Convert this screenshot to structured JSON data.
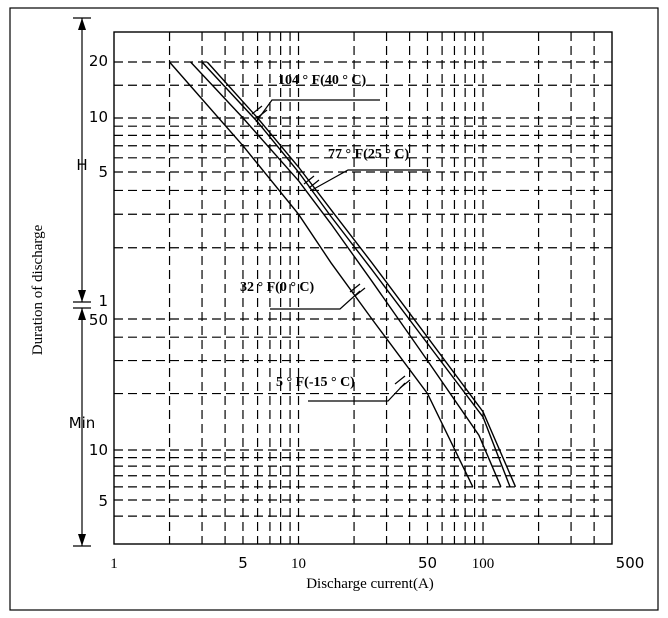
{
  "chart_data": {
    "type": "line",
    "x_scale": "log",
    "y_scale": "log",
    "xlabel": "Discharge current(A)",
    "ylabel": "Duration of discharge",
    "xlim": [
      1,
      500
    ],
    "x_ticks": [
      {
        "value": 1,
        "label": "1"
      },
      {
        "value": 5,
        "label": "5"
      },
      {
        "value": 10,
        "label": "10"
      },
      {
        "value": 50,
        "label": "50"
      },
      {
        "value": 100,
        "label": "100"
      },
      {
        "value": 500,
        "label": "500"
      }
    ],
    "y_hours_ticks": [
      {
        "value": 20,
        "label": "20"
      },
      {
        "value": 10,
        "label": "10"
      },
      {
        "value": 5,
        "label": "5"
      },
      {
        "value": 1,
        "label": "1"
      }
    ],
    "y_minutes_ticks": [
      {
        "value": 50,
        "label": "50"
      },
      {
        "value": 10,
        "label": "10"
      },
      {
        "value": 5,
        "label": "5"
      }
    ],
    "y_unit_hours": "H",
    "y_unit_minutes": "Min",
    "grid": true,
    "series": [
      {
        "name": "104 ° F(40 ° C)",
        "points": [
          [
            3.2,
            1200
          ],
          [
            6,
            600
          ],
          [
            10,
            320
          ],
          [
            15,
            190
          ],
          [
            25,
            100
          ],
          [
            50,
            40
          ],
          [
            100,
            16
          ],
          [
            150,
            6
          ]
        ]
      },
      {
        "name": "77 ° F(25 ° C)",
        "points": [
          [
            3.0,
            1200
          ],
          [
            6,
            570
          ],
          [
            10,
            300
          ],
          [
            15,
            175
          ],
          [
            25,
            92
          ],
          [
            50,
            37
          ],
          [
            100,
            15
          ],
          [
            140,
            6
          ]
        ]
      },
      {
        "name": "32 ° F(0 ° C)",
        "points": [
          [
            2.6,
            1200
          ],
          [
            5,
            600
          ],
          [
            10,
            270
          ],
          [
            15,
            160
          ],
          [
            25,
            80
          ],
          [
            50,
            30
          ],
          [
            95,
            12
          ],
          [
            125,
            6
          ]
        ]
      },
      {
        "name": "5 ° F(-15 ° C)",
        "points": [
          [
            2.0,
            1200
          ],
          [
            5,
            420
          ],
          [
            10,
            180
          ],
          [
            15,
            100
          ],
          [
            25,
            50
          ],
          [
            50,
            20
          ],
          [
            88,
            6
          ]
        ]
      }
    ],
    "annotations": [
      {
        "text": "104 ° F(40 ° C)"
      },
      {
        "text": "77 ° F(25 ° C)"
      },
      {
        "text": "32 ° F(0 ° C)"
      },
      {
        "text": "5 ° F(-15 ° C)"
      }
    ]
  }
}
